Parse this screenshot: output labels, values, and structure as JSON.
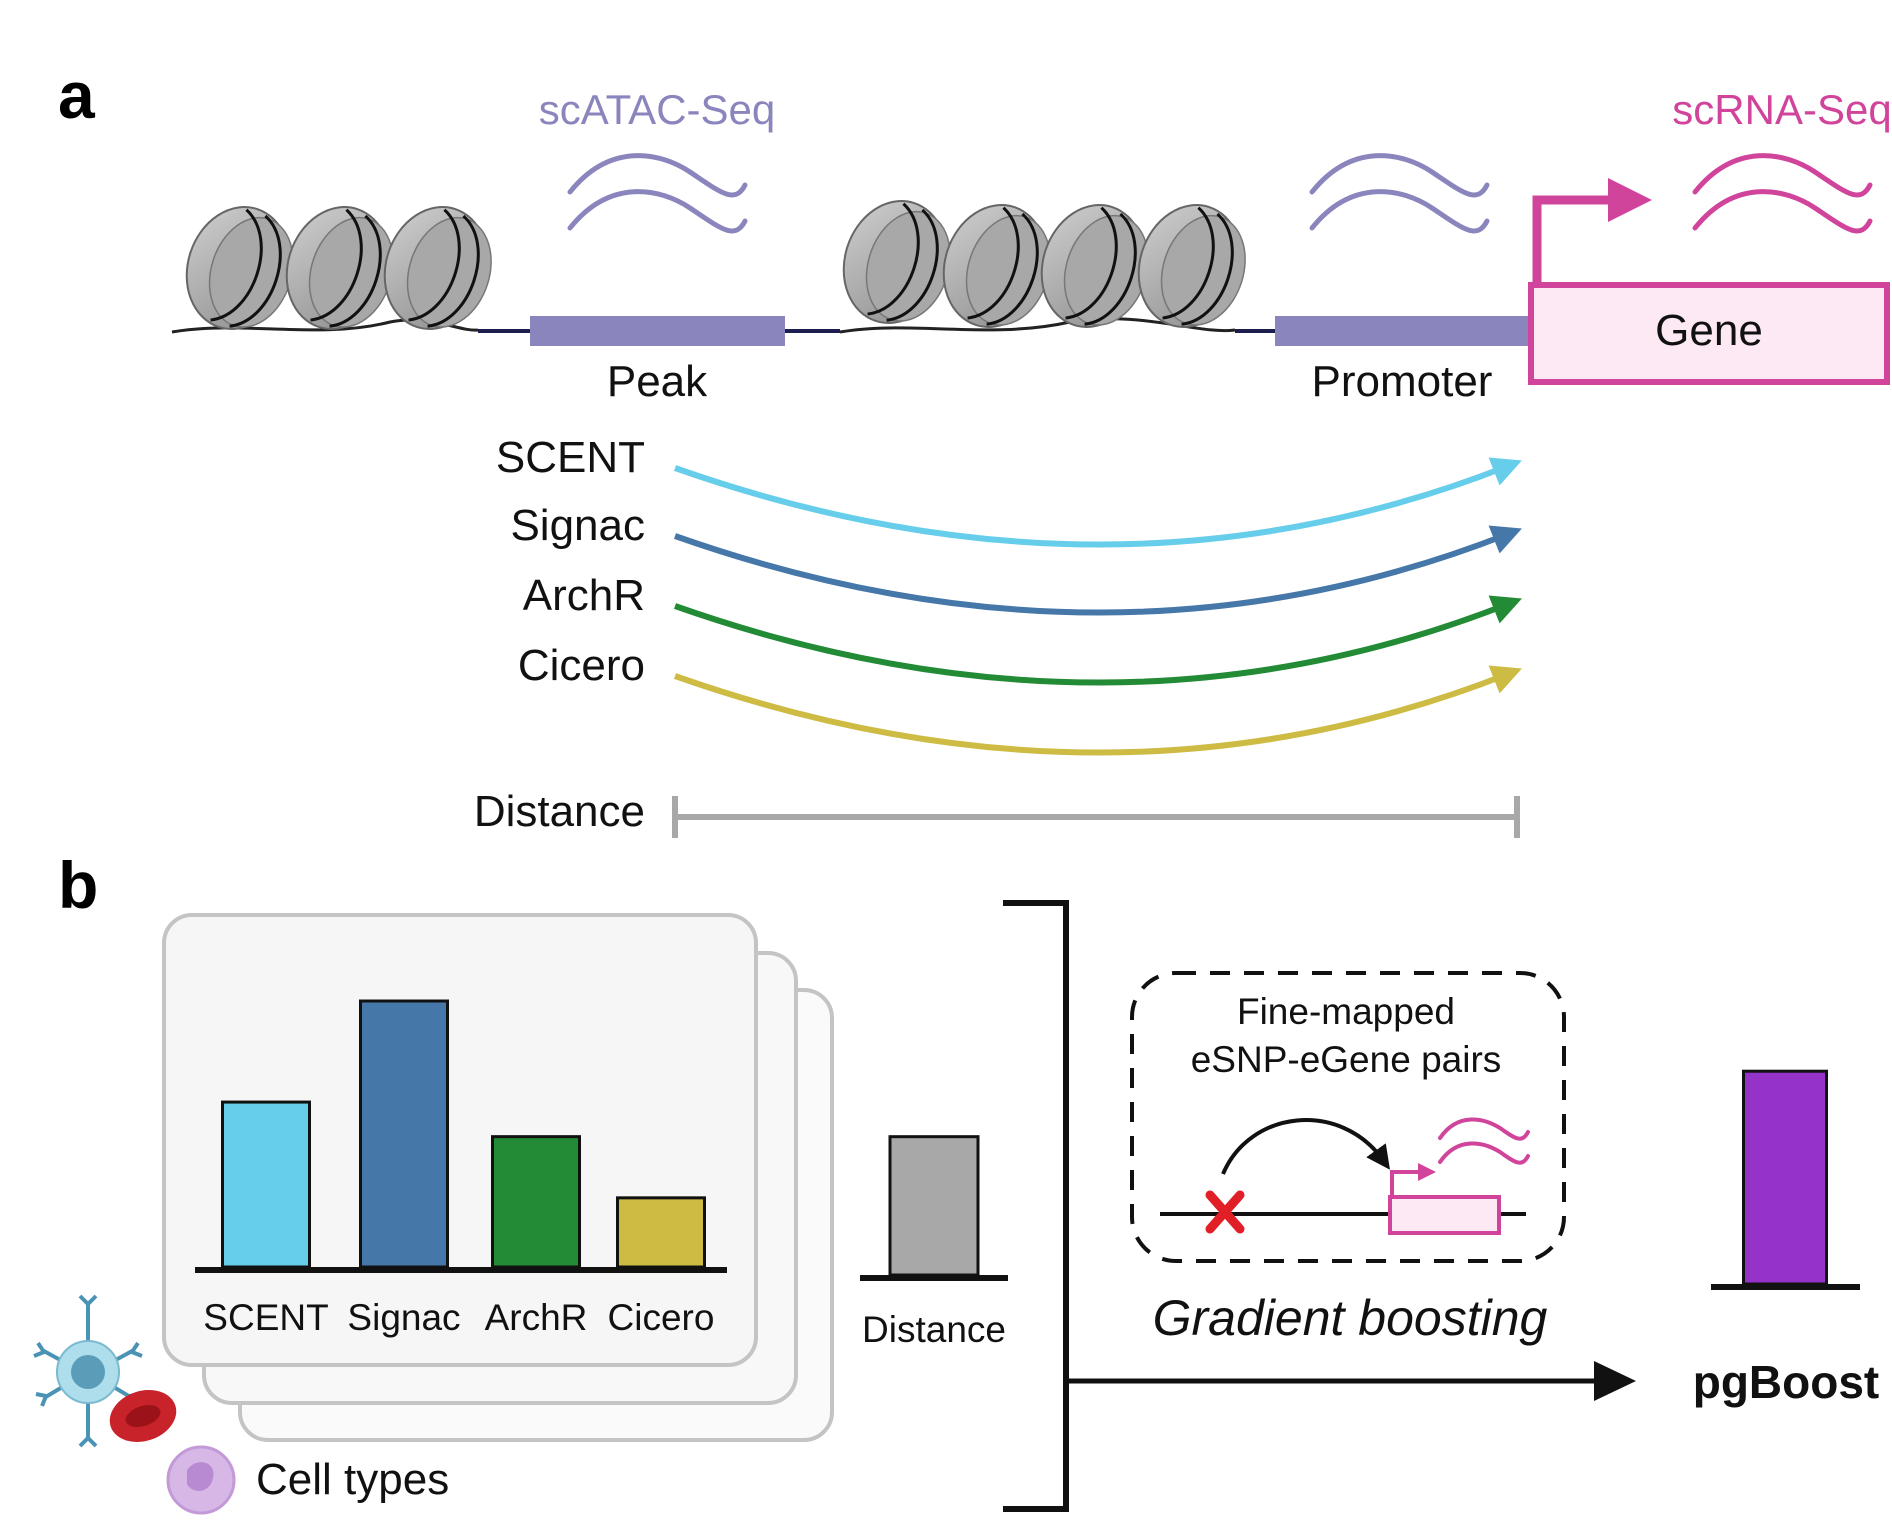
{
  "panel_a": {
    "letter": "a",
    "atac_label": "scATAC-Seq",
    "rna_label": "scRNA-Seq",
    "peak_label": "Peak",
    "promoter_label": "Promoter",
    "gene_label": "Gene",
    "methods": [
      "SCENT",
      "Signac",
      "ArchR",
      "Cicero"
    ],
    "distance_label": "Distance"
  },
  "panel_b": {
    "letter": "b",
    "cell_types_label": "Cell types",
    "distance_label": "Distance",
    "finemap_line1": "Fine-mapped",
    "finemap_line2": "eSNP-eGene pairs",
    "gradient_label": "Gradient boosting",
    "output_label": "pgBoost"
  },
  "colors": {
    "atac": "#8a86bd",
    "rna": "#d1449c",
    "scent": "#66cdeb",
    "signac": "#4677a9",
    "archr": "#238b35",
    "cicero": "#cdbb44",
    "distance": "#a8a8a8",
    "pgboost": "#9533c8"
  },
  "chart_data": {
    "type": "bar",
    "categories": [
      "SCENT",
      "Signac",
      "ArchR",
      "Cicero"
    ],
    "values": [
      0.62,
      1.0,
      0.49,
      0.26
    ],
    "distance_value": 0.52,
    "pgboost_value": 0.8,
    "ylim": [
      0,
      1
    ],
    "title": "",
    "xlabel": "",
    "ylabel": ""
  }
}
